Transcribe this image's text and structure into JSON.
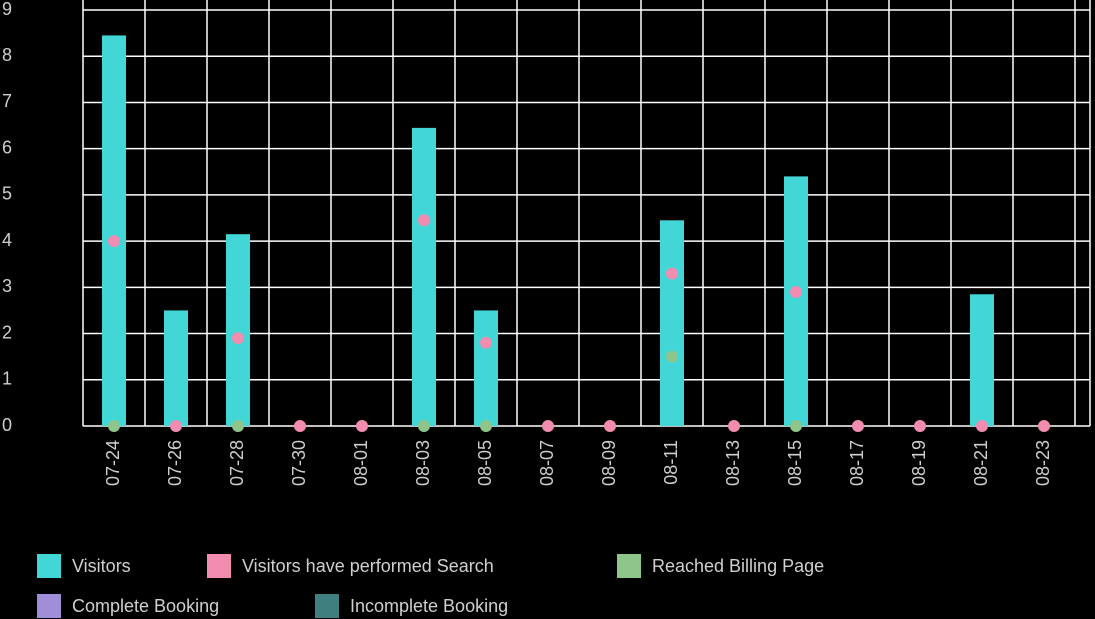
{
  "chart_data": {
    "type": "bar",
    "categories": [
      "07-24",
      "07-26",
      "07-28",
      "07-30",
      "08-01",
      "08-03",
      "08-05",
      "08-07",
      "08-09",
      "08-11",
      "08-13",
      "08-15",
      "08-17",
      "08-19",
      "08-21",
      "08-23"
    ],
    "series": [
      {
        "name": "Visitors",
        "color": "#43d6d6",
        "mark": "bar",
        "values": [
          8.45,
          2.5,
          4.15,
          0,
          0,
          6.45,
          2.5,
          0,
          0,
          4.45,
          0,
          5.4,
          0,
          0,
          2.85,
          0
        ]
      },
      {
        "name": "Visitors have performed Search",
        "color": "#f28cb1",
        "mark": "dot",
        "values": [
          4,
          0,
          1.9,
          0,
          0,
          4.45,
          1.8,
          0,
          0,
          3.3,
          0,
          2.9,
          0,
          0,
          0,
          0
        ]
      },
      {
        "name": "Reached Billing Page",
        "color": "#8dc58a",
        "mark": "dot",
        "values": [
          0,
          null,
          0,
          null,
          null,
          0,
          0,
          null,
          null,
          1.5,
          null,
          0,
          null,
          null,
          null,
          null
        ]
      },
      {
        "name": "Complete Booking",
        "color": "#a08fd8",
        "mark": "dot",
        "values": [
          null,
          null,
          null,
          null,
          null,
          null,
          null,
          null,
          null,
          null,
          null,
          null,
          null,
          null,
          null,
          null
        ]
      },
      {
        "name": "Incomplete Booking",
        "color": "#3e7f80",
        "mark": "dot",
        "values": [
          null,
          null,
          null,
          null,
          null,
          null,
          null,
          null,
          null,
          null,
          null,
          null,
          null,
          null,
          null,
          null
        ]
      }
    ],
    "ylim": [
      0,
      9
    ],
    "yticks": [
      0,
      1,
      2,
      3,
      4,
      5,
      6,
      7,
      8,
      9
    ],
    "grid": true,
    "legend": "bottom"
  }
}
